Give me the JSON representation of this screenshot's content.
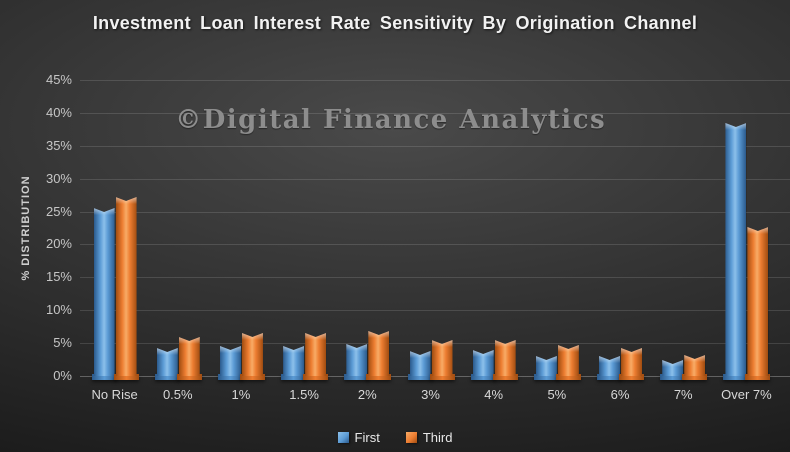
{
  "title": "Investment Loan Interest Rate Sensitivity By Origination Channel",
  "watermark": "©Digital Finance Analytics",
  "chart_data": {
    "type": "bar",
    "title": "Investment Loan Interest Rate Sensitivity By Origination Channel",
    "xlabel": "",
    "ylabel": "% DISTRIBUTION",
    "ylim": [
      0,
      45
    ],
    "ytick_step": 5,
    "yticks": [
      "0%",
      "5%",
      "10%",
      "15%",
      "20%",
      "25%",
      "30%",
      "35%",
      "40%",
      "45%"
    ],
    "grid": true,
    "legend_position": "bottom",
    "background": "dark-gray-radial-gradient",
    "categories": [
      "No Rise",
      "0.5%",
      "1%",
      "1.5%",
      "2%",
      "3%",
      "4%",
      "5%",
      "6%",
      "7%",
      "Over 7%"
    ],
    "series": [
      {
        "name": "First",
        "color": "#5b9bd5",
        "color_light": "#8cc0ea",
        "color_dark": "#2b5a8c",
        "values": [
          25.5,
          4.3,
          4.5,
          4.6,
          4.9,
          3.8,
          3.9,
          3.0,
          3.1,
          2.5,
          38.4
        ]
      },
      {
        "name": "Third",
        "color": "#ed7d31",
        "color_light": "#f8ab66",
        "color_dark": "#a04c10",
        "values": [
          27.2,
          5.9,
          6.5,
          6.6,
          6.9,
          5.4,
          5.5,
          4.7,
          4.2,
          3.2,
          22.6
        ]
      }
    ]
  }
}
